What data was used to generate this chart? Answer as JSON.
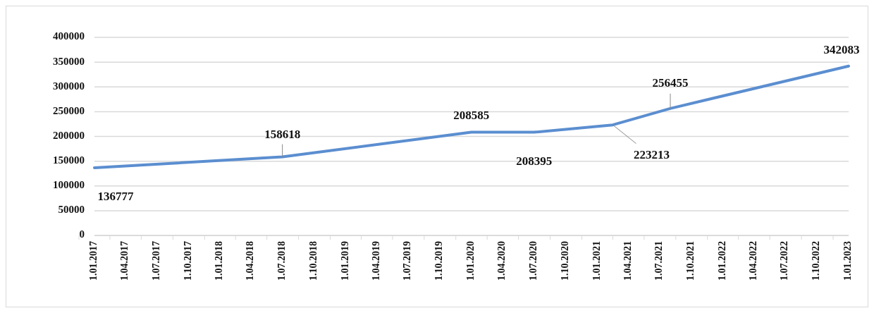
{
  "chart_data": {
    "type": "line",
    "x": [
      "2017-01-01",
      "2018-07-01",
      "2020-01-01",
      "2020-07-01",
      "2021-02-15",
      "2021-08-01",
      "2023-01-01"
    ],
    "series": [
      {
        "color": "#5b8ed0",
        "values": [
          136777,
          158618,
          208585,
          208395,
          223213,
          256455,
          342083
        ]
      }
    ],
    "data_labels": true,
    "xlim": [
      "2017-01-01",
      "2023-01-01"
    ],
    "xticks": [
      {
        "value": "2017-01-01",
        "label": "1.01.2017"
      },
      {
        "value": "2017-04-01",
        "label": "1.04.2017"
      },
      {
        "value": "2017-07-01",
        "label": "1.07.2017"
      },
      {
        "value": "2017-10-01",
        "label": "1.10.2017"
      },
      {
        "value": "2018-01-01",
        "label": "1.01.2018"
      },
      {
        "value": "2018-04-01",
        "label": "1.04.2018"
      },
      {
        "value": "2018-07-01",
        "label": "1.07.2018"
      },
      {
        "value": "2018-10-01",
        "label": "1.10.2018"
      },
      {
        "value": "2019-01-01",
        "label": "1.01.2019"
      },
      {
        "value": "2019-04-01",
        "label": "1.04.2019"
      },
      {
        "value": "2019-07-01",
        "label": "1.07.2019"
      },
      {
        "value": "2019-10-01",
        "label": "1.10.2019"
      },
      {
        "value": "2020-01-01",
        "label": "1.01.2020"
      },
      {
        "value": "2020-04-01",
        "label": "1.04.2020"
      },
      {
        "value": "2020-07-01",
        "label": "1.07.2020"
      },
      {
        "value": "2020-10-01",
        "label": "1.10.2020"
      },
      {
        "value": "2021-01-01",
        "label": "1.01.2021"
      },
      {
        "value": "2021-04-01",
        "label": "1.04.2021"
      },
      {
        "value": "2021-07-01",
        "label": "1.07.2021"
      },
      {
        "value": "2021-10-01",
        "label": "1.10.2021"
      },
      {
        "value": "2022-01-01",
        "label": "1.01.2022"
      },
      {
        "value": "2022-04-01",
        "label": "1.04.2022"
      },
      {
        "value": "2022-07-01",
        "label": "1.07.2022"
      },
      {
        "value": "2022-10-01",
        "label": "1.10.2022"
      },
      {
        "value": "2023-01-01",
        "label": "1.01.2023"
      }
    ],
    "ylim": [
      0,
      400000
    ],
    "yticks": [
      0,
      50000,
      100000,
      150000,
      200000,
      250000,
      300000,
      350000,
      400000
    ],
    "grid": "y",
    "line_style": "solid"
  }
}
